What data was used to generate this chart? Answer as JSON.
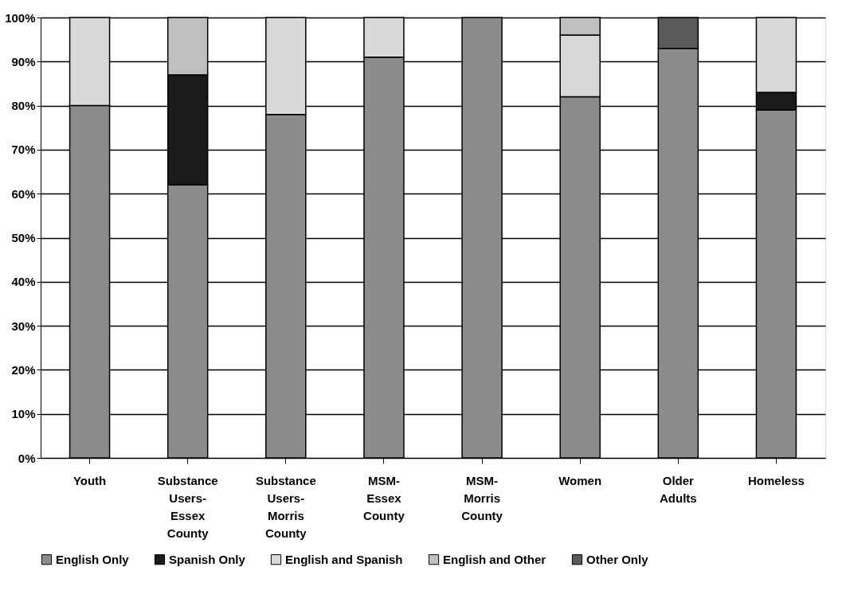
{
  "chart_data": {
    "type": "bar",
    "stacked": true,
    "categories": [
      "Youth",
      "Substance Users-Essex County",
      "Substance Users-Morris County",
      "MSM-Essex County",
      "MSM-Morris County",
      "Women",
      "Older Adults",
      "Homeless"
    ],
    "series": [
      {
        "name": "English Only",
        "color": "#8c8c8c",
        "values": [
          80,
          62,
          78,
          91,
          100,
          82,
          93,
          79
        ]
      },
      {
        "name": "Spanish Only",
        "color": "#1a1a1a",
        "values": [
          null,
          25,
          null,
          null,
          null,
          null,
          null,
          4
        ]
      },
      {
        "name": "English and Spanish",
        "color": "#d9d9d9",
        "values": [
          20,
          null,
          22,
          9,
          null,
          14,
          null,
          17
        ]
      },
      {
        "name": "English and Other",
        "color": "#bfbfbf",
        "values": [
          null,
          13,
          null,
          null,
          null,
          4,
          null,
          null
        ]
      },
      {
        "name": "Other Only",
        "color": "#5a5a5a",
        "values": [
          null,
          null,
          null,
          null,
          null,
          null,
          7,
          null
        ]
      }
    ],
    "ylim": [
      0,
      100
    ],
    "yticks": [
      {
        "value": 0,
        "label": "0%"
      },
      {
        "value": 10,
        "label": "10%"
      },
      {
        "value": 20,
        "label": "20%"
      },
      {
        "value": 30,
        "label": "30%"
      },
      {
        "value": 40,
        "label": "40%"
      },
      {
        "value": 50,
        "label": "50%"
      },
      {
        "value": 60,
        "label": "60%"
      },
      {
        "value": 70,
        "label": "70%"
      },
      {
        "value": 80,
        "label": "80%"
      },
      {
        "value": 90,
        "label": "90%"
      },
      {
        "value": 100,
        "label": "100%"
      }
    ],
    "grid": "y",
    "legend": "bottom"
  }
}
